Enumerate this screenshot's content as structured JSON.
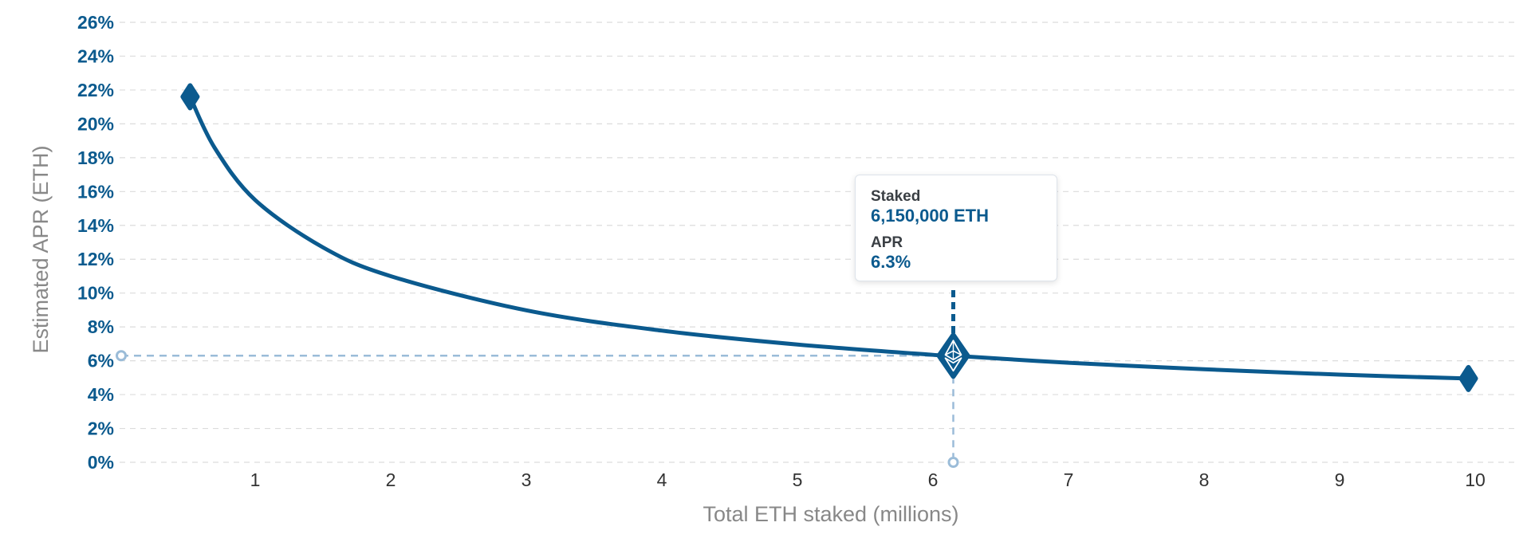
{
  "chart_data": {
    "type": "line",
    "xlabel": "Total ETH staked (millions)",
    "ylabel": "Estimated APR (ETH)",
    "x_ticks": [
      1,
      2,
      3,
      4,
      5,
      6,
      7,
      8,
      9,
      10
    ],
    "y_ticks": [
      "0%",
      "2%",
      "4%",
      "6%",
      "8%",
      "10%",
      "12%",
      "14%",
      "16%",
      "18%",
      "20%",
      "22%",
      "24%",
      "26%"
    ],
    "xlim": [
      0,
      10.1
    ],
    "ylim": [
      0,
      26
    ],
    "grid": "horizontal-dashed",
    "series": [
      {
        "x": [
          0.52,
          0.7,
          1,
          1.5,
          2,
          3,
          4,
          5,
          6,
          6.15,
          7,
          8,
          9,
          9.95
        ],
        "y": [
          21.6,
          18.6,
          15.5,
          12.7,
          11.0,
          8.98,
          7.78,
          6.96,
          6.35,
          6.3,
          5.88,
          5.5,
          5.18,
          4.95
        ]
      }
    ],
    "start_point": {
      "x": 0.52,
      "y": 21.6
    },
    "end_point": {
      "x": 9.95,
      "y": 4.95
    },
    "highlight": {
      "x": 6.15,
      "y": 6.3
    },
    "colors": {
      "line": "#0b5a8e",
      "guide": "#9bbcd8",
      "grid": "#dcdcdc"
    }
  },
  "tooltip": {
    "staked_label": "Staked",
    "staked_value": "6,150,000 ETH",
    "apr_label": "APR",
    "apr_value": "6.3%"
  },
  "icons": {
    "marker": "ethereum-icon"
  }
}
